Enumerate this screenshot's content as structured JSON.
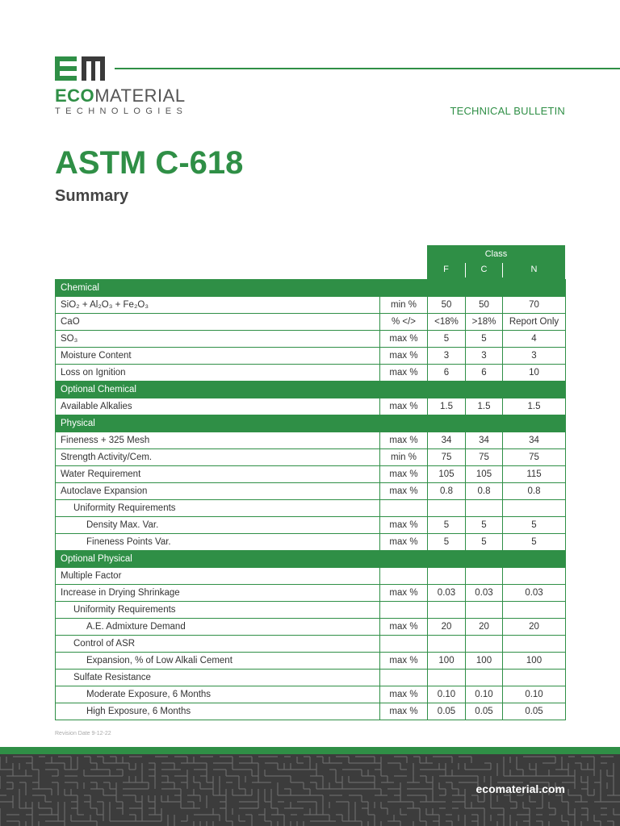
{
  "brand": {
    "logo_mark_text": "EM",
    "name_highlight": "ECO",
    "name_rest": "MATERIAL",
    "tagline": "TECHNOLOGIES",
    "colors": {
      "green": "#2f8f46",
      "dark": "#333333"
    }
  },
  "header": {
    "bulletin": "TECHNICAL BULLETIN"
  },
  "doc": {
    "title": "ASTM C-618",
    "subtitle": "Summary"
  },
  "table": {
    "class_label": "Class",
    "class_columns": [
      "F",
      "C",
      "N"
    ],
    "rows": [
      {
        "type": "section",
        "label": "Chemical"
      },
      {
        "type": "row",
        "indent": 0,
        "name": "SiO₂ + Al₂O₃ + Fe₂O₃",
        "unit": "min %",
        "values": [
          "50",
          "50",
          "70"
        ]
      },
      {
        "type": "row",
        "indent": 0,
        "name": "CaO",
        "unit": "% </>",
        "values": [
          "<18%",
          ">18%",
          "Report Only"
        ]
      },
      {
        "type": "row",
        "indent": 0,
        "name": "SO₃",
        "unit": "max %",
        "values": [
          "5",
          "5",
          "4"
        ]
      },
      {
        "type": "row",
        "indent": 0,
        "name": "Moisture Content",
        "unit": "max %",
        "values": [
          "3",
          "3",
          "3"
        ]
      },
      {
        "type": "row",
        "indent": 0,
        "name": "Loss on Ignition",
        "unit": "max %",
        "values": [
          "6",
          "6",
          "10"
        ]
      },
      {
        "type": "section",
        "label": "Optional Chemical"
      },
      {
        "type": "row",
        "indent": 0,
        "name": "Available Alkalies",
        "unit": "max %",
        "values": [
          "1.5",
          "1.5",
          "1.5"
        ]
      },
      {
        "type": "section",
        "label": "Physical"
      },
      {
        "type": "row",
        "indent": 0,
        "name": "Fineness + 325 Mesh",
        "unit": "max %",
        "values": [
          "34",
          "34",
          "34"
        ]
      },
      {
        "type": "row",
        "indent": 0,
        "name": "Strength Activity/Cem.",
        "unit": "min %",
        "values": [
          "75",
          "75",
          "75"
        ]
      },
      {
        "type": "row",
        "indent": 0,
        "name": "Water Requirement",
        "unit": "max %",
        "values": [
          "105",
          "105",
          "115"
        ]
      },
      {
        "type": "row",
        "indent": 0,
        "name": "Autoclave Expansion",
        "unit": "max %",
        "values": [
          "0.8",
          "0.8",
          "0.8"
        ]
      },
      {
        "type": "row",
        "indent": 1,
        "name": "Uniformity Requirements",
        "unit": "",
        "values": [
          "",
          "",
          ""
        ]
      },
      {
        "type": "row",
        "indent": 2,
        "name": "Density Max. Var.",
        "unit": "max %",
        "values": [
          "5",
          "5",
          "5"
        ]
      },
      {
        "type": "row",
        "indent": 2,
        "name": "Fineness Points Var.",
        "unit": "max %",
        "values": [
          "5",
          "5",
          "5"
        ]
      },
      {
        "type": "section",
        "label": "Optional Physical"
      },
      {
        "type": "row",
        "indent": 0,
        "name": "Multiple Factor",
        "unit": "",
        "values": [
          "",
          "",
          ""
        ]
      },
      {
        "type": "row",
        "indent": 0,
        "name": "Increase in Drying Shrinkage",
        "unit": "max %",
        "values": [
          "0.03",
          "0.03",
          "0.03"
        ]
      },
      {
        "type": "row",
        "indent": 1,
        "name": "Uniformity Requirements",
        "unit": "",
        "values": [
          "",
          "",
          ""
        ]
      },
      {
        "type": "row",
        "indent": 2,
        "name": "A.E. Admixture Demand",
        "unit": "max %",
        "values": [
          "20",
          "20",
          "20"
        ]
      },
      {
        "type": "row",
        "indent": 1,
        "name": "Control of ASR",
        "unit": "",
        "values": [
          "",
          "",
          ""
        ]
      },
      {
        "type": "row",
        "indent": 2,
        "name": "Expansion, % of Low Alkali Cement",
        "unit": "max %",
        "values": [
          "100",
          "100",
          "100"
        ]
      },
      {
        "type": "row",
        "indent": 1,
        "name": "Sulfate Resistance",
        "unit": "",
        "values": [
          "",
          "",
          ""
        ]
      },
      {
        "type": "row",
        "indent": 2,
        "name": "Moderate Exposure, 6 Months",
        "unit": "max %",
        "values": [
          "0.10",
          "0.10",
          "0.10"
        ]
      },
      {
        "type": "row",
        "indent": 2,
        "name": "High Exposure, 6 Months",
        "unit": "max %",
        "values": [
          "0.05",
          "0.05",
          "0.05"
        ]
      }
    ]
  },
  "footer": {
    "revision": "Revision Date 9-12-22",
    "url": "ecomaterial.com"
  }
}
